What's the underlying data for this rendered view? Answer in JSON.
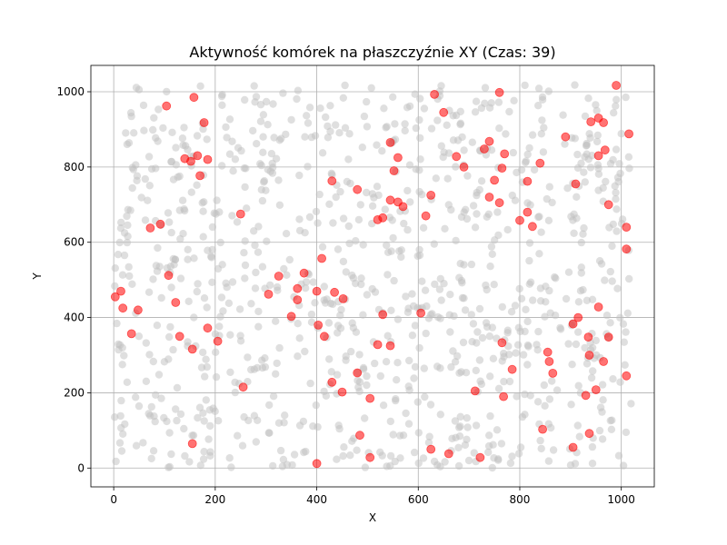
{
  "chart_data": {
    "type": "scatter",
    "title": "Aktywność komórek na płaszczyźnie XY (Czas: 39)",
    "xlabel": "X",
    "ylabel": "Y",
    "xlim": [
      -45,
      1065
    ],
    "ylim": [
      -50,
      1070
    ],
    "xticks": [
      0,
      200,
      400,
      600,
      800,
      1000
    ],
    "yticks": [
      0,
      200,
      400,
      600,
      800,
      1000
    ],
    "grid": true,
    "series": [
      {
        "role": "inactive",
        "color": "#c0c0c0",
        "count_estimate": 1000,
        "x_range": [
          0,
          1020
        ],
        "y_range": [
          0,
          1020
        ],
        "note_shown": "light gray points fill the plane uniformly"
      },
      {
        "role": "active",
        "color": "#ff0000",
        "points": [
          [
            104,
            962
          ],
          [
            158,
            985
          ],
          [
            178,
            918
          ],
          [
            140,
            822
          ],
          [
            152,
            815
          ],
          [
            165,
            830
          ],
          [
            185,
            820
          ],
          [
            170,
            777
          ],
          [
            72,
            638
          ],
          [
            92,
            648
          ],
          [
            250,
            675
          ],
          [
            108,
            512
          ],
          [
            122,
            440
          ],
          [
            3,
            455
          ],
          [
            14,
            470
          ],
          [
            18,
            425
          ],
          [
            48,
            420
          ],
          [
            35,
            357
          ],
          [
            130,
            350
          ],
          [
            155,
            316
          ],
          [
            185,
            372
          ],
          [
            205,
            337
          ],
          [
            255,
            215
          ],
          [
            155,
            65
          ],
          [
            305,
            462
          ],
          [
            325,
            510
          ],
          [
            350,
            403
          ],
          [
            362,
            447
          ],
          [
            362,
            477
          ],
          [
            375,
            518
          ],
          [
            400,
            470
          ],
          [
            403,
            380
          ],
          [
            410,
            557
          ],
          [
            415,
            350
          ],
          [
            430,
            228
          ],
          [
            435,
            467
          ],
          [
            450,
            202
          ],
          [
            452,
            450
          ],
          [
            430,
            763
          ],
          [
            480,
            740
          ],
          [
            480,
            253
          ],
          [
            485,
            87
          ],
          [
            505,
            185
          ],
          [
            505,
            28
          ],
          [
            545,
            865
          ],
          [
            552,
            790
          ],
          [
            560,
            825
          ],
          [
            545,
            712
          ],
          [
            560,
            707
          ],
          [
            570,
            695
          ],
          [
            520,
            660
          ],
          [
            530,
            665
          ],
          [
            530,
            408
          ],
          [
            520,
            328
          ],
          [
            545,
            325
          ],
          [
            400,
            12
          ],
          [
            632,
            993
          ],
          [
            650,
            945
          ],
          [
            675,
            828
          ],
          [
            690,
            800
          ],
          [
            625,
            725
          ],
          [
            615,
            670
          ],
          [
            605,
            412
          ],
          [
            625,
            50
          ],
          [
            660,
            38
          ],
          [
            730,
            848
          ],
          [
            740,
            868
          ],
          [
            740,
            720
          ],
          [
            750,
            765
          ],
          [
            760,
            998
          ],
          [
            760,
            705
          ],
          [
            770,
            835
          ],
          [
            765,
            797
          ],
          [
            765,
            333
          ],
          [
            768,
            190
          ],
          [
            785,
            262
          ],
          [
            712,
            205
          ],
          [
            722,
            28
          ],
          [
            800,
            658
          ],
          [
            815,
            680
          ],
          [
            825,
            642
          ],
          [
            815,
            762
          ],
          [
            840,
            810
          ],
          [
            845,
            103
          ],
          [
            855,
            308
          ],
          [
            858,
            283
          ],
          [
            865,
            252
          ],
          [
            890,
            880
          ],
          [
            910,
            755
          ],
          [
            905,
            383
          ],
          [
            915,
            400
          ],
          [
            935,
            348
          ],
          [
            937,
            300
          ],
          [
            937,
            92
          ],
          [
            930,
            193
          ],
          [
            950,
            208
          ],
          [
            955,
            428
          ],
          [
            965,
            283
          ],
          [
            975,
            348
          ],
          [
            905,
            55
          ],
          [
            940,
            920
          ],
          [
            955,
            930
          ],
          [
            965,
            918
          ],
          [
            955,
            830
          ],
          [
            968,
            845
          ],
          [
            975,
            700
          ],
          [
            990,
            1017
          ],
          [
            1015,
            888
          ],
          [
            1010,
            640
          ],
          [
            1010,
            582
          ],
          [
            1010,
            245
          ]
        ]
      }
    ]
  }
}
